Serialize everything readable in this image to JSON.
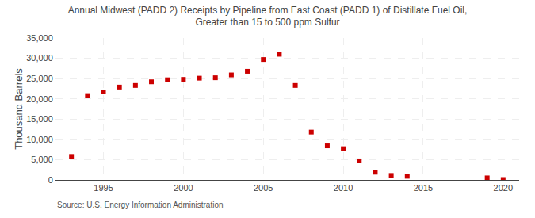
{
  "chart_data": {
    "type": "scatter",
    "title": "Annual Midwest (PADD 2) Receipts by Pipeline from East Coast (PADD 1) of Distillate Fuel Oil,\nGreater than 15 to 500 ppm Sulfur",
    "ylabel": "Thousand Barrels",
    "annotations": [
      "Source: U.S. Energy Information Administration"
    ],
    "x": [
      1993,
      1994,
      1995,
      1996,
      1997,
      1998,
      1999,
      2000,
      2001,
      2002,
      2003,
      2004,
      2005,
      2006,
      2007,
      2008,
      2009,
      2010,
      2011,
      2012,
      2013,
      2014,
      2019,
      2020
    ],
    "values": [
      5800,
      20800,
      21700,
      22900,
      23300,
      24200,
      24700,
      24800,
      25100,
      25200,
      25900,
      26800,
      29700,
      31000,
      23300,
      11800,
      8400,
      7700,
      4700,
      1900,
      1100,
      900,
      500,
      100
    ],
    "color": "#cc0000",
    "marker": "square",
    "xlim": [
      1992,
      2021
    ],
    "xticks": [
      1995,
      2000,
      2005,
      2010,
      2015,
      2020
    ],
    "ylim": [
      0,
      35000
    ],
    "yticks": [
      0,
      {
        "value": 5000,
        "label": "5,000"
      },
      {
        "value": 10000,
        "label": "10,000"
      },
      {
        "value": 15000,
        "label": "15,000"
      },
      {
        "value": 20000,
        "label": "20,000"
      },
      {
        "value": 25000,
        "label": "25,000"
      },
      {
        "value": 30000,
        "label": "30,000"
      },
      {
        "value": 35000,
        "label": "35,000"
      }
    ],
    "grid": true
  }
}
